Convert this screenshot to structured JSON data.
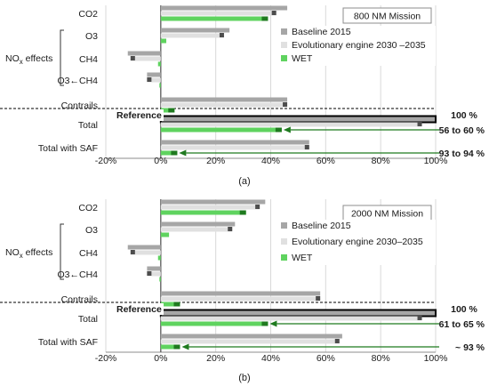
{
  "figure": {
    "caption_a": "(a)",
    "caption_b": "(b)"
  },
  "chart_data": [
    {
      "type": "bar",
      "orientation": "horizontal",
      "title": "800 NM Mission",
      "xlim": [
        -20,
        100
      ],
      "x_ticks": [
        "-20%",
        "0%",
        "20%",
        "40%",
        "60%",
        "80%",
        "100%"
      ],
      "x_tick_values": [
        -20,
        0,
        20,
        40,
        60,
        80,
        100
      ],
      "grid": true,
      "legend_position": "top-right",
      "group_label": "NOx effects",
      "categories": [
        "CO2",
        "O3",
        "CH4",
        "O3←CH4",
        "Contrails",
        "Total",
        "Total with SAF"
      ],
      "series": [
        {
          "name": "Baseline 2015",
          "color": "#a6a6a6",
          "values": [
            46,
            25,
            -12,
            -5,
            46,
            100,
            54
          ]
        },
        {
          "name": "Evolutionary engine 2030 –2035",
          "color": "#e0e0e0",
          "values": [
            42,
            23,
            -11,
            -5,
            46,
            95,
            54
          ]
        },
        {
          "name": "WET",
          "color": "#5fd35f",
          "values": [
            39,
            2,
            -1,
            -0.5,
            5,
            44,
            6
          ]
        }
      ],
      "marker_color": "#4d4d4d",
      "wet_marker_color": "#1f7a1f",
      "reference_label": "Reference",
      "reference_value_label": "100 %",
      "annotations": [
        "56 to 60 %",
        "93 to 94 %"
      ]
    },
    {
      "type": "bar",
      "orientation": "horizontal",
      "title": "2000 NM Mission",
      "xlim": [
        -20,
        100
      ],
      "x_ticks": [
        "-20%",
        "0%",
        "20%",
        "40%",
        "60%",
        "80%",
        "100%"
      ],
      "x_tick_values": [
        -20,
        0,
        20,
        40,
        60,
        80,
        100
      ],
      "grid": true,
      "legend_position": "top-right",
      "group_label": "NOx effects",
      "categories": [
        "CO2",
        "O3",
        "CH4",
        "O3←CH4",
        "Contrails",
        "Total",
        "Total with SAF"
      ],
      "series": [
        {
          "name": "Baseline 2015",
          "color": "#a6a6a6",
          "values": [
            38,
            27,
            -12,
            -5,
            58,
            100,
            66
          ]
        },
        {
          "name": "Evolutionary engine 2030–2035",
          "color": "#e0e0e0",
          "values": [
            36,
            26,
            -11,
            -5,
            58,
            95,
            65
          ]
        },
        {
          "name": "WET",
          "color": "#5fd35f",
          "values": [
            31,
            3,
            -1,
            -0.5,
            7,
            39,
            7
          ]
        }
      ],
      "marker_color": "#4d4d4d",
      "wet_marker_color": "#1f7a1f",
      "reference_label": "Reference",
      "reference_value_label": "100 %",
      "annotations": [
        "61 to 65 %",
        "~ 93 %"
      ]
    }
  ]
}
